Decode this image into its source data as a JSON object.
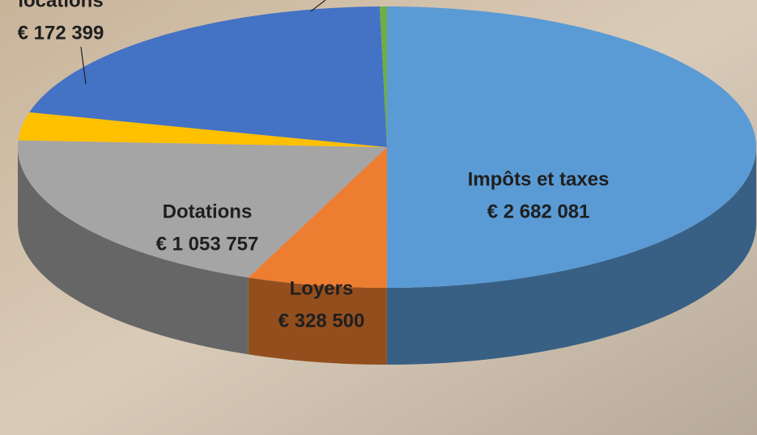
{
  "chart_data": {
    "type": "pie3d",
    "categories": [
      "Impôts et taxes",
      "Loyers",
      "Dotations",
      "locations",
      null,
      null
    ],
    "values": [
      2682081,
      328500,
      1053757,
      172399,
      1110000,
      17000
    ],
    "value_labels": [
      "€ 2 682 081",
      "€ 328 500",
      "€ 1 053 757",
      "€ 172 399",
      null,
      null
    ],
    "colors": [
      "#5b9bd5",
      "#ed7d31",
      "#a5a5a5",
      "#ffc000",
      "#4472c4",
      "#70ad47"
    ]
  }
}
